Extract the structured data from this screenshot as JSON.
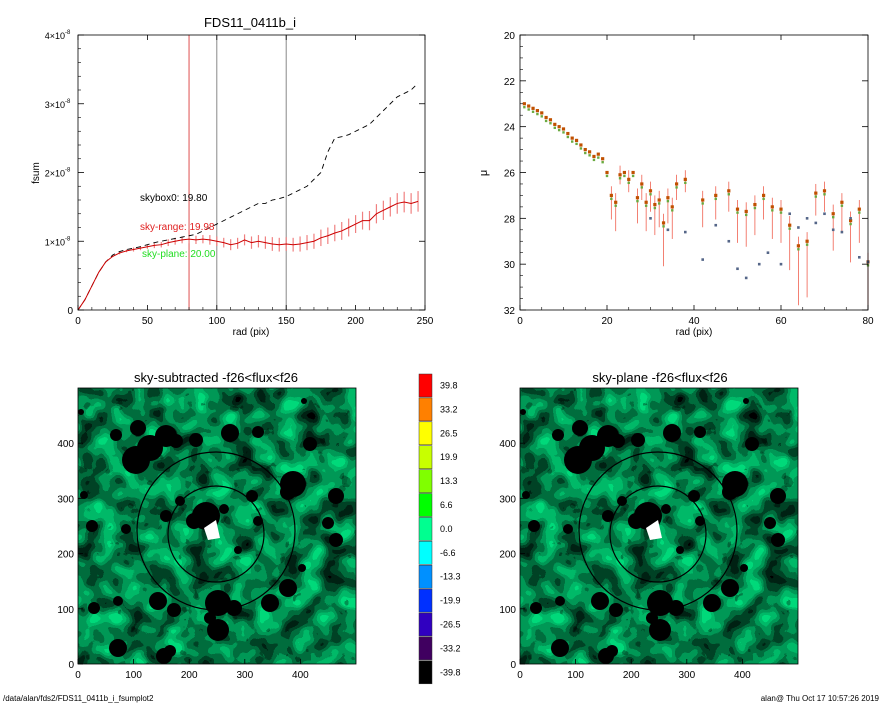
{
  "footer": {
    "path": "/data/alan/fds2/FDS11_0411b_i_fsumplot2",
    "stamp": "alan@  Thu Oct 17 10:57:26 2019"
  },
  "chart_data": [
    {
      "type": "line",
      "title": "FDS11_0411b_i",
      "xlabel": "rad (pix)",
      "ylabel": "fsum",
      "xlim": [
        0,
        250
      ],
      "ylim": [
        0,
        4e-08
      ],
      "xticks": [
        0,
        50,
        100,
        150,
        200,
        250
      ],
      "yticks": [
        0,
        1,
        2,
        3,
        4
      ],
      "ytick_labels": [
        "0",
        "1×10",
        "2×10",
        "3×10",
        "4×10"
      ],
      "ytick_exponent": "-8",
      "vlines": [
        {
          "x": 80,
          "color": "#e05050"
        },
        {
          "x": 100,
          "color": "#888888"
        },
        {
          "x": 150,
          "color": "#888888"
        }
      ],
      "annotations": [
        {
          "text": "skybox0: 19.80",
          "color": "#000000"
        },
        {
          "text": "sky-range: 19.98",
          "color": "#e02020"
        },
        {
          "text": "sky-plane: 20.00",
          "color": "#22dd22"
        }
      ],
      "series": [
        {
          "style": "dashed",
          "color": "#000000",
          "x": [
            0,
            5,
            10,
            15,
            20,
            25,
            30,
            35,
            40,
            45,
            50,
            55,
            60,
            65,
            70,
            75,
            80,
            85,
            90,
            95,
            100,
            105,
            110,
            115,
            120,
            125,
            130,
            135,
            140,
            145,
            150,
            155,
            160,
            165,
            170,
            175,
            180,
            185,
            190,
            195,
            200,
            205,
            210,
            215,
            220,
            225,
            230,
            235,
            240,
            245
          ],
          "y": [
            0,
            0.15,
            0.35,
            0.55,
            0.7,
            0.8,
            0.85,
            0.88,
            0.9,
            0.92,
            0.95,
            0.98,
            1.0,
            1.02,
            1.04,
            1.06,
            1.08,
            1.1,
            1.15,
            1.2,
            1.25,
            1.3,
            1.35,
            1.4,
            1.45,
            1.5,
            1.55,
            1.55,
            1.6,
            1.62,
            1.65,
            1.7,
            1.75,
            1.8,
            1.9,
            2.0,
            2.3,
            2.5,
            2.52,
            2.55,
            2.6,
            2.65,
            2.7,
            2.8,
            2.9,
            3.0,
            3.1,
            3.15,
            3.2,
            3.3
          ]
        },
        {
          "style": "solid",
          "color": "#cc0000",
          "error_color": "#f08080",
          "x": [
            0,
            5,
            10,
            15,
            20,
            25,
            30,
            35,
            40,
            45,
            50,
            55,
            60,
            65,
            70,
            75,
            80,
            85,
            90,
            95,
            100,
            105,
            110,
            115,
            120,
            125,
            130,
            135,
            140,
            145,
            150,
            155,
            160,
            165,
            170,
            175,
            180,
            185,
            190,
            195,
            200,
            205,
            210,
            215,
            220,
            225,
            230,
            235,
            240,
            245
          ],
          "y": [
            0,
            0.15,
            0.35,
            0.55,
            0.7,
            0.78,
            0.83,
            0.86,
            0.88,
            0.9,
            0.92,
            0.94,
            0.95,
            0.98,
            1.0,
            1.02,
            1.03,
            1.02,
            1.03,
            1.02,
            1.0,
            0.98,
            0.95,
            0.97,
            1.02,
            0.98,
            1.0,
            0.98,
            0.96,
            0.95,
            0.96,
            0.95,
            0.96,
            0.98,
            1.0,
            1.05,
            1.08,
            1.12,
            1.15,
            1.2,
            1.25,
            1.3,
            1.3,
            1.4,
            1.45,
            1.5,
            1.55,
            1.57,
            1.55,
            1.58
          ],
          "err": [
            0,
            0,
            0,
            0,
            0,
            0.01,
            0.02,
            0.02,
            0.03,
            0.03,
            0.03,
            0.04,
            0.04,
            0.05,
            0.05,
            0.05,
            0.06,
            0.06,
            0.06,
            0.07,
            0.07,
            0.07,
            0.08,
            0.08,
            0.08,
            0.09,
            0.09,
            0.09,
            0.1,
            0.1,
            0.1,
            0.1,
            0.11,
            0.11,
            0.11,
            0.12,
            0.12,
            0.12,
            0.13,
            0.13,
            0.13,
            0.13,
            0.14,
            0.14,
            0.14,
            0.14,
            0.15,
            0.15,
            0.15,
            0.15
          ]
        }
      ]
    },
    {
      "type": "scatter",
      "xlabel": "rad (pix)",
      "ylabel": "μ",
      "xlim": [
        0,
        80
      ],
      "ylim": [
        32,
        20
      ],
      "xticks": [
        0,
        20,
        40,
        60,
        80
      ],
      "yticks": [
        20,
        22,
        24,
        26,
        28,
        30,
        32
      ],
      "series": [
        {
          "color": "#c05000",
          "x": [
            1,
            2,
            3,
            4,
            5,
            6,
            7,
            8,
            9,
            10,
            11,
            12,
            13,
            14,
            15,
            16,
            17,
            18,
            19,
            20,
            21,
            22,
            23,
            24,
            25,
            26,
            27,
            28,
            29,
            30,
            31,
            32,
            33,
            34,
            35,
            36,
            38,
            42,
            45,
            48,
            50,
            52,
            54,
            56,
            58,
            60,
            62,
            64,
            66,
            68,
            70,
            72,
            74,
            76,
            78,
            80
          ],
          "y": [
            23.0,
            23.1,
            23.2,
            23.3,
            23.4,
            23.6,
            23.7,
            23.9,
            24.0,
            24.1,
            24.3,
            24.5,
            24.6,
            24.8,
            25.0,
            25.1,
            25.3,
            25.2,
            25.4,
            26.0,
            27.0,
            27.3,
            26.1,
            26.0,
            26.3,
            26.0,
            27.1,
            26.5,
            27.3,
            26.8,
            27.4,
            27.2,
            28.2,
            27.1,
            27.5,
            26.5,
            26.3,
            27.2,
            27.0,
            26.8,
            27.6,
            27.7,
            27.4,
            27.0,
            27.5,
            27.6,
            28.3,
            29.2,
            29.0,
            26.9,
            26.8,
            27.8,
            27.3,
            28.1,
            27.6,
            29.9
          ]
        },
        {
          "color": "#556688",
          "x": [
            30,
            34,
            38,
            42,
            45,
            48,
            50,
            52,
            55,
            57,
            60,
            62,
            64,
            66,
            68,
            70,
            72,
            74,
            76,
            78,
            80
          ],
          "y": [
            28.0,
            28.5,
            28.6,
            29.8,
            28.3,
            29.0,
            30.2,
            30.6,
            30.0,
            29.5,
            30.0,
            27.8,
            28.4,
            28.0,
            28.2,
            27.8,
            28.5,
            28.6,
            28.0,
            29.7,
            29.9
          ]
        }
      ]
    },
    {
      "type": "heatmap",
      "title": "sky-subtracted -f26<flux<f26",
      "xlim": [
        0,
        500
      ],
      "ylim": [
        0,
        500
      ],
      "xticks": [
        0,
        100,
        200,
        300,
        400
      ],
      "yticks": [
        0,
        100,
        200,
        300,
        400
      ],
      "ellipses": [
        {
          "cx": 250,
          "cy": 240,
          "rx": 160,
          "ry": 160
        },
        {
          "cx": 250,
          "cy": 235,
          "rx": 100,
          "ry": 100
        }
      ]
    },
    {
      "type": "heatmap",
      "title": "sky-plane -f26<flux<f26",
      "xlim": [
        0,
        500
      ],
      "ylim": [
        0,
        500
      ],
      "xticks": [
        0,
        100,
        200,
        300,
        400
      ],
      "yticks": [
        0,
        100,
        200,
        300,
        400
      ],
      "ellipses": [
        {
          "cx": 250,
          "cy": 240,
          "rx": 160,
          "ry": 160
        },
        {
          "cx": 250,
          "cy": 235,
          "rx": 100,
          "ry": 100
        }
      ]
    },
    {
      "type": "colorbar",
      "levels": [
        "39.8",
        "33.2",
        "26.5",
        "19.9",
        "13.3",
        "6.6",
        "0.0",
        "-6.6",
        "-13.3",
        "-19.9",
        "-26.5",
        "-33.2",
        "-39.8"
      ],
      "colors": [
        "#ff0000",
        "#ff8000",
        "#ffff00",
        "#c8ff00",
        "#80ff00",
        "#00ff00",
        "#00ff90",
        "#00ffff",
        "#0090ff",
        "#0030ff",
        "#3000c0",
        "#400060",
        "#000000"
      ]
    }
  ]
}
